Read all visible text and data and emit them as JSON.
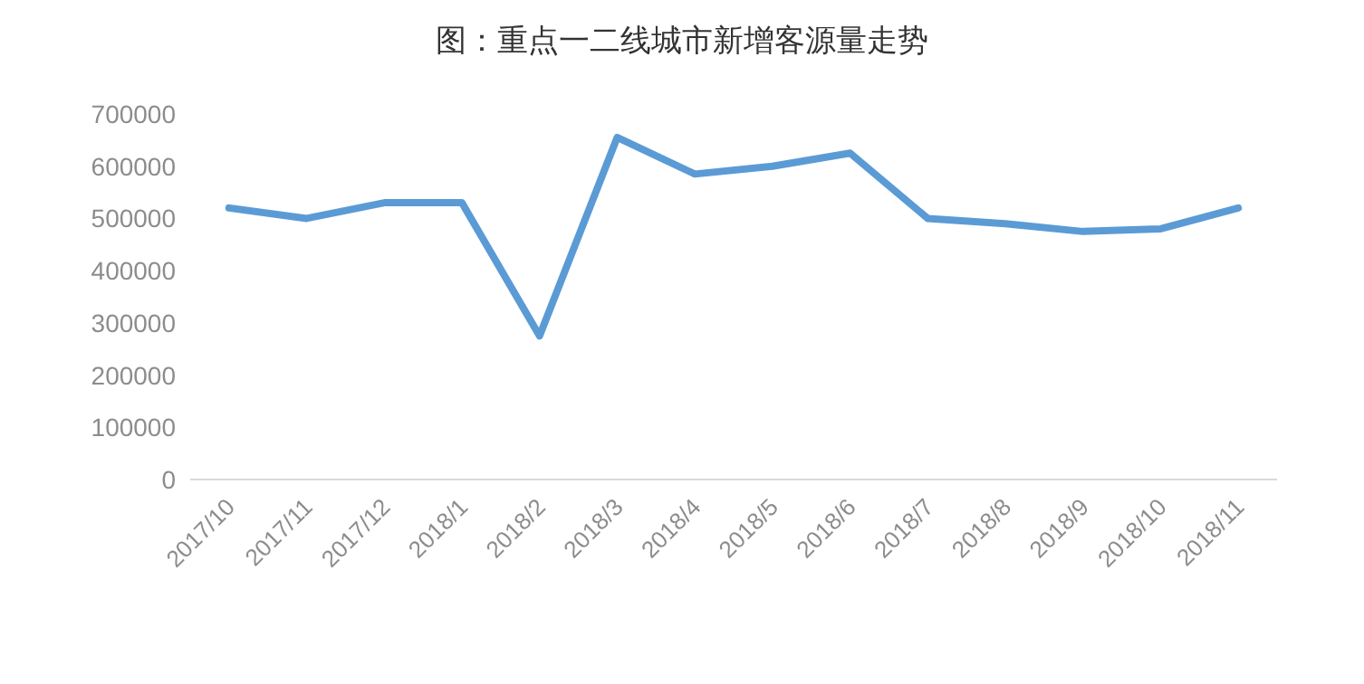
{
  "chart_data": {
    "type": "line",
    "title": "图：重点一二线城市新增客源量走势",
    "categories": [
      "2017/10",
      "2017/11",
      "2017/12",
      "2018/1",
      "2018/2",
      "2018/3",
      "2018/4",
      "2018/5",
      "2018/6",
      "2018/7",
      "2018/8",
      "2018/9",
      "2018/10",
      "2018/11"
    ],
    "series": [
      {
        "color": "#5b9bd5",
        "values": [
          520000,
          500000,
          530000,
          530000,
          275000,
          655000,
          585000,
          600000,
          625000,
          500000,
          490000,
          475000,
          480000,
          520000
        ]
      }
    ],
    "ylim": [
      0,
      700000
    ],
    "yticks": [
      0,
      100000,
      200000,
      300000,
      400000,
      500000,
      600000,
      700000
    ],
    "marker": "none",
    "line_style": "solid"
  }
}
